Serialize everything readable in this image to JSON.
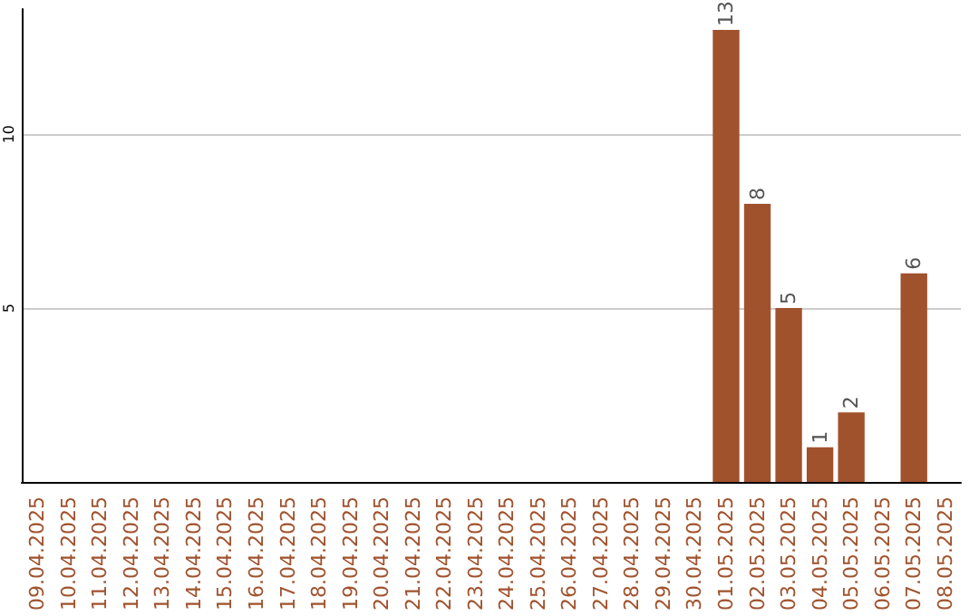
{
  "chart_data": {
    "type": "bar",
    "categories": [
      "09.04.2025",
      "10.04.2025",
      "11.04.2025",
      "12.04.2025",
      "13.04.2025",
      "14.04.2025",
      "15.04.2025",
      "16.04.2025",
      "17.04.2025",
      "18.04.2025",
      "19.04.2025",
      "20.04.2025",
      "21.04.2025",
      "22.04.2025",
      "23.04.2025",
      "24.04.2025",
      "25.04.2025",
      "26.04.2025",
      "27.04.2025",
      "28.04.2025",
      "29.04.2025",
      "30.04.2025",
      "01.05.2025",
      "02.05.2025",
      "03.05.2025",
      "04.05.2025",
      "05.05.2025",
      "06.05.2025",
      "07.05.2025",
      "08.05.2025"
    ],
    "values": [
      0,
      0,
      0,
      0,
      0,
      0,
      0,
      0,
      0,
      0,
      0,
      0,
      0,
      0,
      0,
      0,
      0,
      0,
      0,
      0,
      0,
      0,
      13,
      8,
      5,
      1,
      2,
      0,
      6,
      0
    ],
    "value_labels": [
      null,
      null,
      null,
      null,
      null,
      null,
      null,
      null,
      null,
      null,
      null,
      null,
      null,
      null,
      null,
      null,
      null,
      null,
      null,
      null,
      null,
      null,
      "13",
      "8",
      "5",
      "1",
      "2",
      null,
      "6",
      null
    ],
    "color": "#a0522d",
    "ylim": [
      0,
      13.6
    ],
    "yticks": [
      5,
      10
    ],
    "grid": "y"
  }
}
